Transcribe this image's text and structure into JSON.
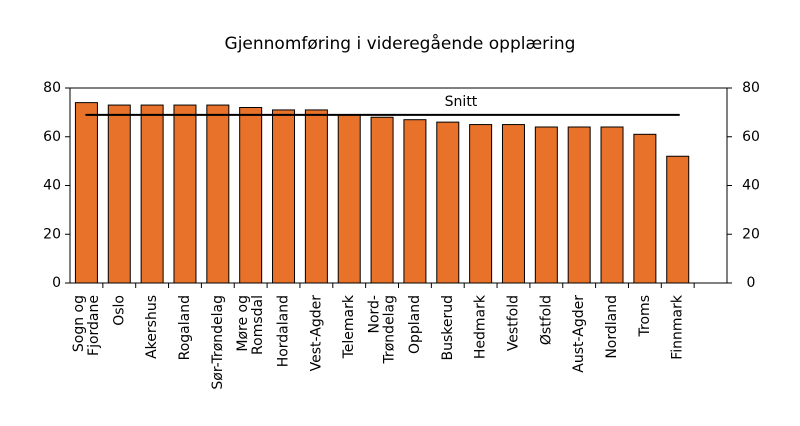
{
  "chart_data": {
    "type": "bar",
    "title": "Gjennomføring i videregående opplæring",
    "categories": [
      "Sogn og\nFjordane",
      "Oslo",
      "Akershus",
      "Rogaland",
      "Sør-Trøndelag",
      "Møre og\nRomsdal",
      "Hordaland",
      "Vest-Agder",
      "Telemark",
      "Nord-\nTrøndelag",
      "Oppland",
      "Buskerud",
      "Hedmark",
      "Vestfold",
      "Østfold",
      "Aust-Agder",
      "Nordland",
      "Troms",
      "Finnmark",
      null
    ],
    "values": [
      74,
      73,
      73,
      73,
      73,
      72,
      71,
      71,
      69,
      68,
      67,
      66,
      65,
      65,
      64,
      64,
      64,
      61,
      52,
      null
    ],
    "color": "#e8722a",
    "reference_line": {
      "label": "Snitt",
      "value": 69
    },
    "ylim": [
      0,
      80
    ],
    "yticks": [
      0,
      20,
      40,
      60,
      80
    ],
    "y2lim": [
      0,
      80
    ],
    "y2ticks": [
      0,
      20,
      40,
      60,
      80
    ]
  }
}
